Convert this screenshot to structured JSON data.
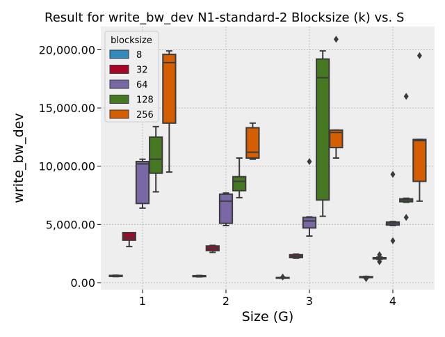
{
  "chart_data": {
    "type": "box",
    "title": "Result for write_bw_dev N1-standard-2 Blocksize (k) vs. S",
    "xlabel": "Size (G)",
    "ylabel": "write_bw_dev",
    "categories": [
      "1",
      "2",
      "3",
      "4"
    ],
    "ylim": [
      -600,
      22000
    ],
    "yticks": [
      0,
      5000,
      10000,
      15000,
      20000
    ],
    "ytick_labels": [
      "0.00",
      "5,000.00",
      "10,000.00",
      "15,000.00",
      "20,000.00"
    ],
    "grid": true,
    "legend": {
      "title": "blocksize",
      "position": "top-left"
    },
    "series": [
      {
        "name": "8",
        "color": "#348ABD",
        "boxes": [
          {
            "category": "1",
            "whisker_low": 520,
            "q1": 540,
            "median": 580,
            "q3": 620,
            "whisker_high": 640,
            "outliers": []
          },
          {
            "category": "2",
            "whisker_low": 500,
            "q1": 520,
            "median": 560,
            "q3": 600,
            "whisker_high": 620,
            "outliers": []
          },
          {
            "category": "3",
            "whisker_low": 380,
            "q1": 400,
            "median": 420,
            "q3": 440,
            "whisker_high": 460,
            "outliers": [
              480
            ]
          },
          {
            "category": "4",
            "whisker_low": 420,
            "q1": 440,
            "median": 480,
            "q3": 520,
            "whisker_high": 540,
            "outliers": [
              350
            ]
          }
        ]
      },
      {
        "name": "32",
        "color": "#A60628",
        "boxes": [
          {
            "category": "1",
            "whisker_low": 3100,
            "q1": 3650,
            "median": 3900,
            "q3": 4300,
            "whisker_high": 4300,
            "outliers": []
          },
          {
            "category": "2",
            "whisker_low": 2600,
            "q1": 2750,
            "median": 2950,
            "q3": 3150,
            "whisker_high": 3200,
            "outliers": []
          },
          {
            "category": "3",
            "whisker_low": 2100,
            "q1": 2150,
            "median": 2250,
            "q3": 2400,
            "whisker_high": 2450,
            "outliers": []
          },
          {
            "category": "4",
            "whisker_low": 2000,
            "q1": 2050,
            "median": 2100,
            "q3": 2150,
            "whisker_high": 2200,
            "outliers": [
              1800,
              2400
            ]
          }
        ]
      },
      {
        "name": "64",
        "color": "#7A68A6",
        "boxes": [
          {
            "category": "1",
            "whisker_low": 6400,
            "q1": 6800,
            "median": 10200,
            "q3": 10400,
            "whisker_high": 10600,
            "outliers": []
          },
          {
            "category": "2",
            "whisker_low": 4900,
            "q1": 5100,
            "median": 7000,
            "q3": 7600,
            "whisker_high": 7700,
            "outliers": []
          },
          {
            "category": "3",
            "whisker_low": 4000,
            "q1": 4700,
            "median": 5300,
            "q3": 5600,
            "whisker_high": 5650,
            "outliers": [
              10400
            ]
          },
          {
            "category": "4",
            "whisker_low": 4900,
            "q1": 4950,
            "median": 5100,
            "q3": 5200,
            "whisker_high": 5250,
            "outliers": [
              3600,
              9300
            ]
          }
        ]
      },
      {
        "name": "128",
        "color": "#467821",
        "boxes": [
          {
            "category": "1",
            "whisker_low": 7800,
            "q1": 9400,
            "median": 10600,
            "q3": 12500,
            "whisker_high": 13400,
            "outliers": []
          },
          {
            "category": "2",
            "whisker_low": 7300,
            "q1": 7900,
            "median": 8700,
            "q3": 9100,
            "whisker_high": 10700,
            "outliers": []
          },
          {
            "category": "3",
            "whisker_low": 5700,
            "q1": 7100,
            "median": 17600,
            "q3": 19200,
            "whisker_high": 19900,
            "outliers": []
          },
          {
            "category": "4",
            "whisker_low": 6900,
            "q1": 6950,
            "median": 7100,
            "q3": 7200,
            "whisker_high": 7250,
            "outliers": [
              5600,
              16000
            ]
          }
        ]
      },
      {
        "name": "256",
        "color": "#D55E00",
        "boxes": [
          {
            "category": "1",
            "whisker_low": 9500,
            "q1": 13700,
            "median": 18900,
            "q3": 19600,
            "whisker_high": 19900,
            "outliers": []
          },
          {
            "category": "2",
            "whisker_low": 10600,
            "q1": 10700,
            "median": 11200,
            "q3": 13300,
            "whisker_high": 13700,
            "outliers": []
          },
          {
            "category": "3",
            "whisker_low": 10700,
            "q1": 11600,
            "median": 12900,
            "q3": 13100,
            "whisker_high": 13100,
            "outliers": [
              20900
            ]
          },
          {
            "category": "4",
            "whisker_low": 7000,
            "q1": 8700,
            "median": 12200,
            "q3": 12300,
            "whisker_high": 12300,
            "outliers": [
              19500
            ]
          }
        ]
      }
    ]
  }
}
